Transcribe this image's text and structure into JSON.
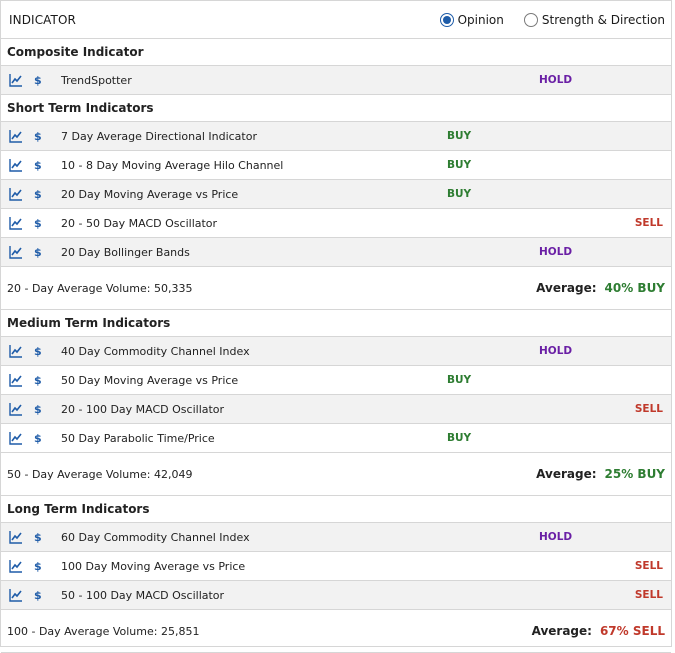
{
  "header": {
    "title": "INDICATOR",
    "radio_opinion": "Opinion",
    "radio_strength": "Strength & Direction"
  },
  "colors": {
    "buy": "#2e7d32",
    "hold": "#6a1fa5",
    "sell": "#c0392b",
    "accent": "#1f5ca8"
  },
  "composite": {
    "title": "Composite Indicator",
    "rows": [
      {
        "name": "TrendSpotter",
        "signal": "HOLD"
      }
    ]
  },
  "short_term": {
    "title": "Short Term Indicators",
    "rows": [
      {
        "name": "7 Day Average Directional Indicator",
        "signal": "BUY"
      },
      {
        "name": "10 - 8 Day Moving Average Hilo Channel",
        "signal": "BUY"
      },
      {
        "name": "20 Day Moving Average vs Price",
        "signal": "BUY"
      },
      {
        "name": "20 - 50 Day MACD Oscillator",
        "signal": "SELL"
      },
      {
        "name": "20 Day Bollinger Bands",
        "signal": "HOLD"
      }
    ],
    "volume": "20 - Day Average Volume: 50,335",
    "average_label": "Average:",
    "average_value": "40% BUY"
  },
  "medium_term": {
    "title": "Medium Term Indicators",
    "rows": [
      {
        "name": "40 Day Commodity Channel Index",
        "signal": "HOLD"
      },
      {
        "name": "50 Day Moving Average vs Price",
        "signal": "BUY"
      },
      {
        "name": "20 - 100 Day MACD Oscillator",
        "signal": "SELL"
      },
      {
        "name": "50 Day Parabolic Time/Price",
        "signal": "BUY"
      }
    ],
    "volume": "50 - Day Average Volume: 42,049",
    "average_label": "Average:",
    "average_value": "25% BUY"
  },
  "long_term": {
    "title": "Long Term Indicators",
    "rows": [
      {
        "name": "60 Day Commodity Channel Index",
        "signal": "HOLD"
      },
      {
        "name": "100 Day Moving Average vs Price",
        "signal": "SELL"
      },
      {
        "name": "50 - 100 Day MACD Oscillator",
        "signal": "SELL"
      }
    ],
    "volume": "100 - Day Average Volume: 25,851",
    "average_label": "Average:",
    "average_value": "67% SELL"
  },
  "icons": {
    "chart": "line-chart-icon",
    "dollar": "$"
  }
}
